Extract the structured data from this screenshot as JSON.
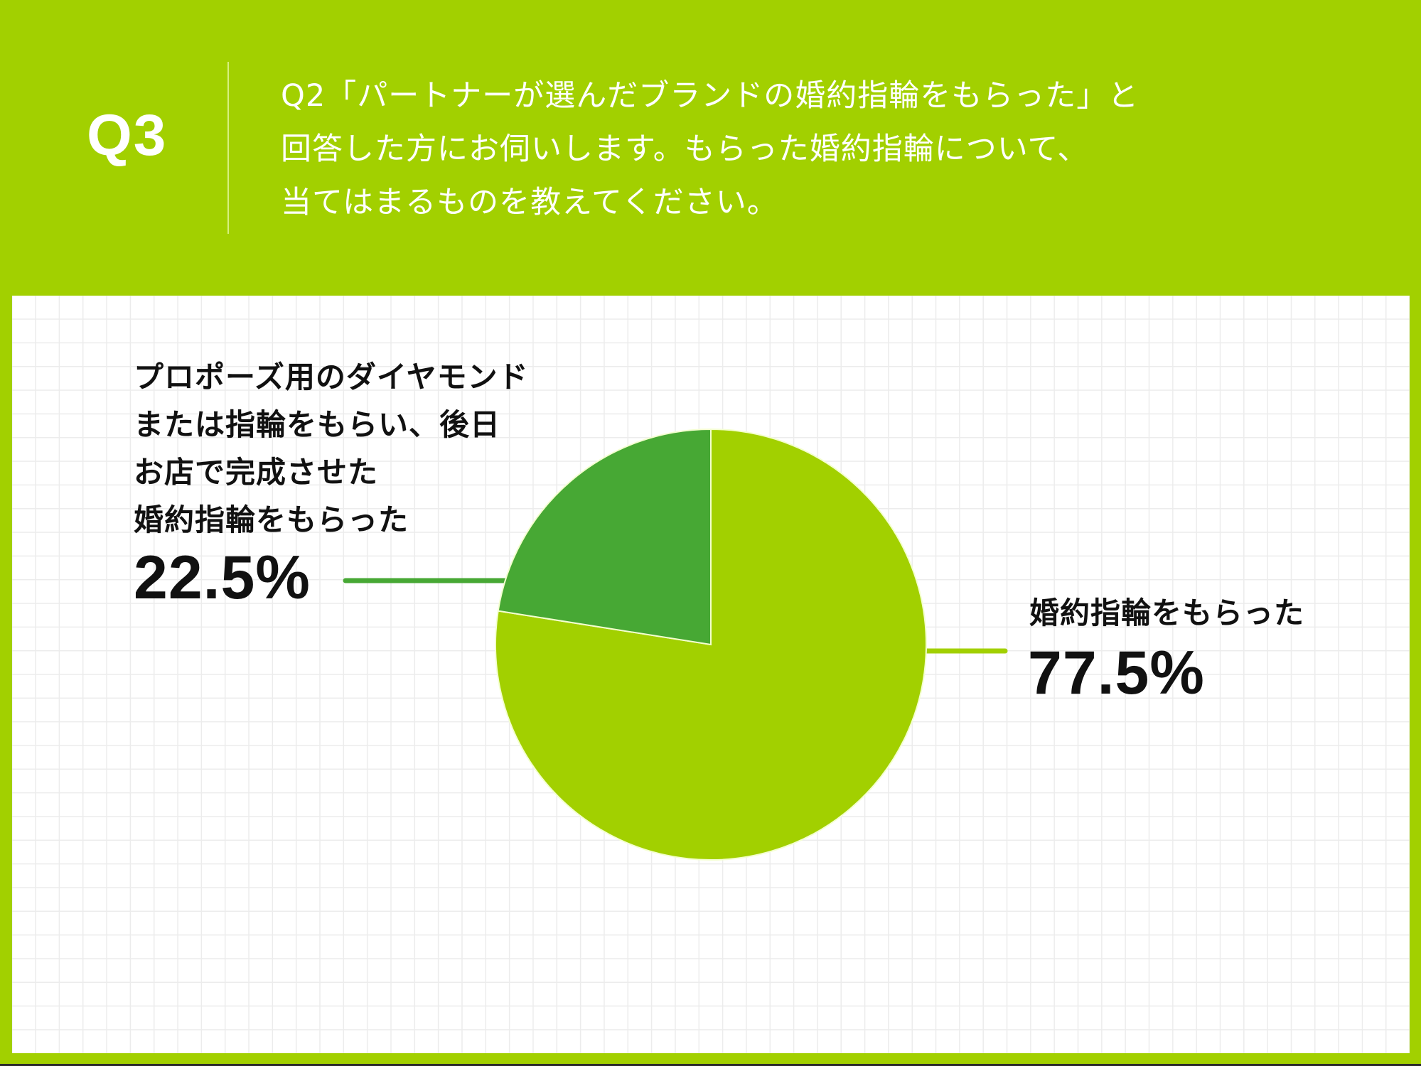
{
  "header": {
    "question_number": "Q3",
    "question_lines": [
      "Q2「パートナーが選んだブランドの婚約指輪をもらった」と",
      "回答した方にお伺いします。もらった婚約指輪について、",
      "当てはまるものを教えてください。"
    ]
  },
  "colors": {
    "background": "#a2d000",
    "slice_major": "#a2d000",
    "slice_minor": "#47a834",
    "grid": "#ececec",
    "text_dark": "#111111",
    "text_light": "#ffffff"
  },
  "labels": {
    "minor": {
      "lines": [
        "プロポーズ用のダイヤモンド",
        "または指輪をもらい、後日",
        "お店で完成させた",
        "婚約指輪をもらった"
      ],
      "value": "22.5%"
    },
    "major": {
      "lines": [
        "婚約指輪をもらった"
      ],
      "value": "77.5%"
    }
  },
  "chart_data": {
    "type": "pie",
    "title": "Q2「パートナーが選んだブランドの婚約指輪をもらった」と回答した方にお伺いします。もらった婚約指輪について、当てはまるものを教えてください。",
    "categories": [
      "婚約指輪をもらった",
      "プロポーズ用のダイヤモンドまたは指輪をもらい、後日お店で完成させた婚約指輪をもらった"
    ],
    "values": [
      77.5,
      22.5
    ],
    "unit": "%",
    "colors": [
      "#a2d000",
      "#47a834"
    ],
    "start_angle": "12 o'clock",
    "legend": "callout labels with leader lines",
    "grid_background": true
  }
}
